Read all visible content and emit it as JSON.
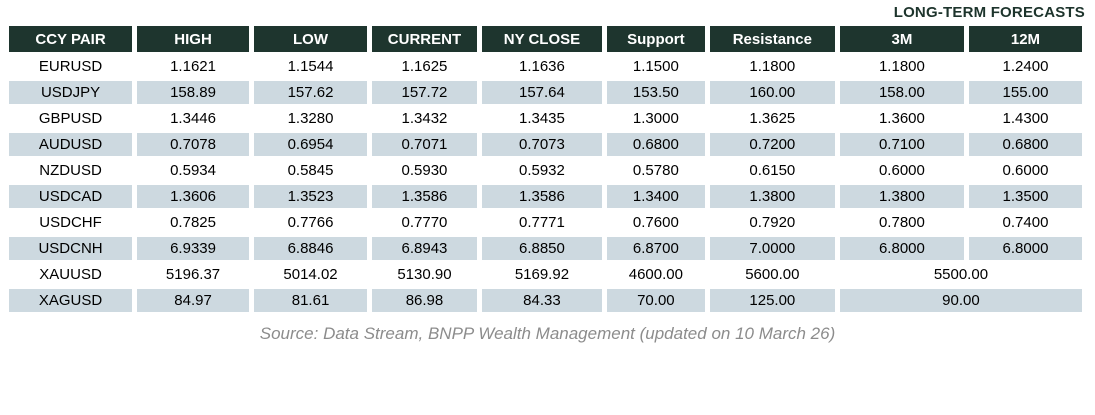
{
  "table_caption": "LONG-TERM FORECASTS",
  "columns": [
    "CCY PAIR",
    "HIGH",
    "LOW",
    "CURRENT",
    "NY CLOSE",
    "Support",
    "Resistance",
    "3M",
    "12M"
  ],
  "rows": [
    {
      "pair": "EURUSD",
      "high": "1.1621",
      "low": "1.1544",
      "current": "1.1625",
      "ny_close": "1.1636",
      "support": "1.1500",
      "resistance": "1.1800",
      "m3": "1.1800",
      "m12": "1.2400"
    },
    {
      "pair": "USDJPY",
      "high": "158.89",
      "low": "157.62",
      "current": "157.72",
      "ny_close": "157.64",
      "support": "153.50",
      "resistance": "160.00",
      "m3": "158.00",
      "m12": "155.00"
    },
    {
      "pair": "GBPUSD",
      "high": "1.3446",
      "low": "1.3280",
      "current": "1.3432",
      "ny_close": "1.3435",
      "support": "1.3000",
      "resistance": "1.3625",
      "m3": "1.3600",
      "m12": "1.4300"
    },
    {
      "pair": "AUDUSD",
      "high": "0.7078",
      "low": "0.6954",
      "current": "0.7071",
      "ny_close": "0.7073",
      "support": "0.6800",
      "resistance": "0.7200",
      "m3": "0.7100",
      "m12": "0.6800"
    },
    {
      "pair": "NZDUSD",
      "high": "0.5934",
      "low": "0.5845",
      "current": "0.5930",
      "ny_close": "0.5932",
      "support": "0.5780",
      "resistance": "0.6150",
      "m3": "0.6000",
      "m12": "0.6000"
    },
    {
      "pair": "USDCAD",
      "high": "1.3606",
      "low": "1.3523",
      "current": "1.3586",
      "ny_close": "1.3586",
      "support": "1.3400",
      "resistance": "1.3800",
      "m3": "1.3800",
      "m12": "1.3500"
    },
    {
      "pair": "USDCHF",
      "high": "0.7825",
      "low": "0.7766",
      "current": "0.7770",
      "ny_close": "0.7771",
      "support": "0.7600",
      "resistance": "0.7920",
      "m3": "0.7800",
      "m12": "0.7400"
    },
    {
      "pair": "USDCNH",
      "high": "6.9339",
      "low": "6.8846",
      "current": "6.8943",
      "ny_close": "6.8850",
      "support": "6.8700",
      "resistance": "7.0000",
      "m3": "6.8000",
      "m12": "6.8000"
    },
    {
      "pair": "XAUUSD",
      "high": "5196.37",
      "low": "5014.02",
      "current": "5130.90",
      "ny_close": "5169.92",
      "support": "4600.00",
      "resistance": "5600.00",
      "forecast_merged": "5500.00"
    },
    {
      "pair": "XAGUSD",
      "high": "84.97",
      "low": "81.61",
      "current": "86.98",
      "ny_close": "84.33",
      "support": "70.00",
      "resistance": "125.00",
      "forecast_merged": "90.00"
    }
  ],
  "footer": {
    "source_text": "Source: Data Stream, BNPP Wealth Management (updated on 10 March 26)"
  },
  "colors": {
    "header_bg": "#1e352e",
    "header_text": "#ffffff",
    "row_alt_bg": "#cdd9e0",
    "body_text": "#000000",
    "caption_text": "#1d342c",
    "source_text": "#8c8c8c"
  }
}
